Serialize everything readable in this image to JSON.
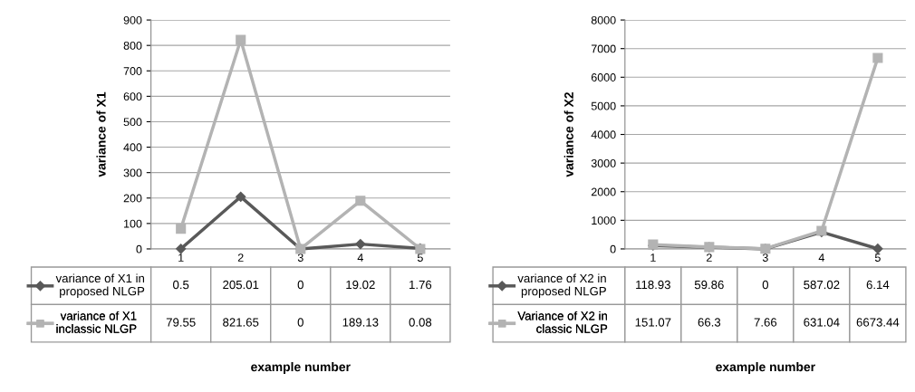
{
  "chart_data": [
    {
      "type": "line",
      "ylabel": "variance of X1",
      "xlabel": "example number",
      "categories": [
        "1",
        "2",
        "3",
        "4",
        "5"
      ],
      "ylim": [
        0,
        900
      ],
      "yticks": [
        0,
        100,
        200,
        300,
        400,
        500,
        600,
        700,
        800,
        900
      ],
      "grid": "y",
      "data_labels": true,
      "legend": "bottom",
      "series": [
        {
          "name": "variance of X1 in\nproposed NLGP",
          "color": "#595959",
          "marker": "diamond",
          "values": [
            0.5,
            205.01,
            0,
            19.02,
            1.76
          ]
        },
        {
          "name": "variance of X1\ninclassic NLGP",
          "color": "#b3b3b3",
          "marker": "square",
          "values": [
            79.55,
            821.65,
            0,
            189.13,
            0.08
          ]
        }
      ]
    },
    {
      "type": "line",
      "ylabel": "variance of X2",
      "xlabel": "example number",
      "categories": [
        "1",
        "2",
        "3",
        "4",
        "5"
      ],
      "ylim": [
        0,
        8000
      ],
      "yticks": [
        0,
        1000,
        2000,
        3000,
        4000,
        5000,
        6000,
        7000,
        8000
      ],
      "grid": "y",
      "data_labels": true,
      "legend": "bottom",
      "series": [
        {
          "name": "variance of X2 in\nproposed NLGP",
          "color": "#595959",
          "marker": "diamond",
          "values": [
            118.93,
            59.86,
            0,
            587.02,
            6.14
          ]
        },
        {
          "name": "Variance of X2 in\nclassic NLGP",
          "color": "#b3b3b3",
          "marker": "square",
          "values": [
            151.07,
            66.3,
            7.66,
            631.04,
            6673.44
          ]
        }
      ]
    }
  ]
}
